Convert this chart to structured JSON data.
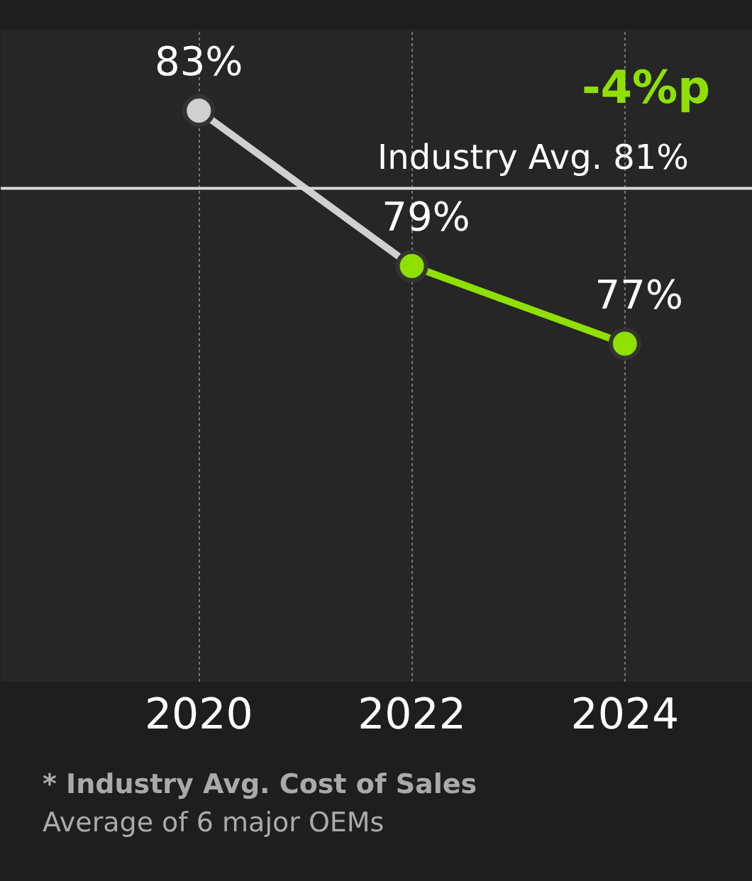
{
  "chart_data": {
    "type": "line",
    "categories": [
      "2020",
      "2022",
      "2024"
    ],
    "series": [
      {
        "color": "#d0d0d0",
        "values": [
          83,
          79,
          null
        ],
        "value_labels": [
          "83%",
          "79%",
          null
        ]
      },
      {
        "color": "#8fe000",
        "values": [
          null,
          79,
          77
        ],
        "value_labels": [
          null,
          null,
          "77%"
        ]
      }
    ],
    "ref_lines": [
      {
        "axis": "y",
        "value": 81,
        "label": "Industry Avg. 81%",
        "color": "#d9d9d9"
      }
    ],
    "annotations": [
      "-4%p",
      "* Industry Avg. Cost of Sales",
      "Average of 6 major OEMs"
    ],
    "marker": "circle",
    "grid": "x",
    "tick_labels": "x"
  }
}
